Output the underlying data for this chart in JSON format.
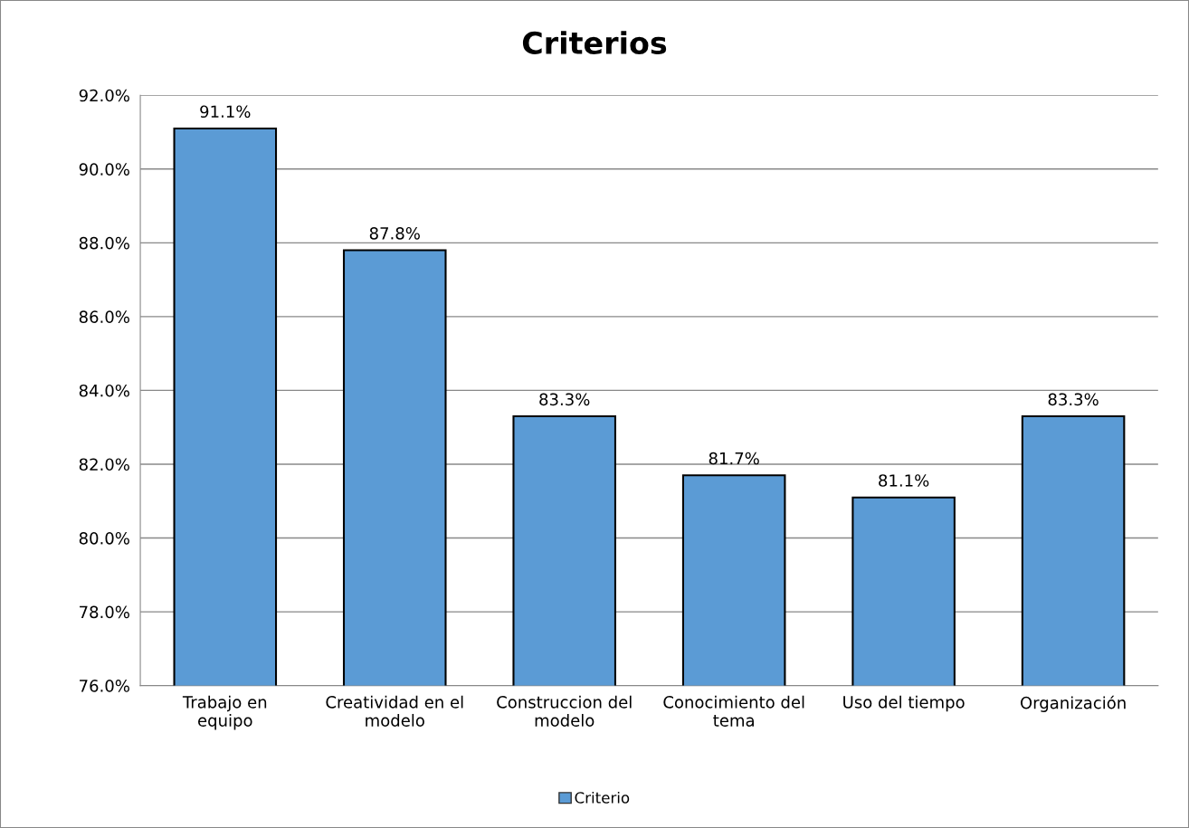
{
  "chart_data": {
    "type": "bar",
    "title": "Criterios",
    "categories": [
      "Trabajo en\nequipo",
      "Creatividad en el\nmodelo",
      "Construccion del\nmodelo",
      "Conocimiento del\ntema",
      "Uso del tiempo",
      "Organización"
    ],
    "series": [
      {
        "name": "Criterio",
        "color": "#5b9bd5",
        "values": [
          91.1,
          87.8,
          83.3,
          81.7,
          81.1,
          83.3
        ],
        "value_labels": [
          "91.1%",
          "87.8%",
          "83.3%",
          "81.7%",
          "81.1%",
          "83.3%"
        ]
      }
    ],
    "ylim": [
      76,
      92
    ],
    "yticks": [
      {
        "value": 76,
        "label": "76.0%"
      },
      {
        "value": 78,
        "label": "78.0%"
      },
      {
        "value": 80,
        "label": "80.0%"
      },
      {
        "value": 82,
        "label": "82.0%"
      },
      {
        "value": 84,
        "label": "84.0%"
      },
      {
        "value": 86,
        "label": "86.0%"
      },
      {
        "value": 88,
        "label": "88.0%"
      },
      {
        "value": 90,
        "label": "90.0%"
      },
      {
        "value": 92,
        "label": "92.0%"
      }
    ],
    "grid": "y",
    "legend": "bottom"
  }
}
